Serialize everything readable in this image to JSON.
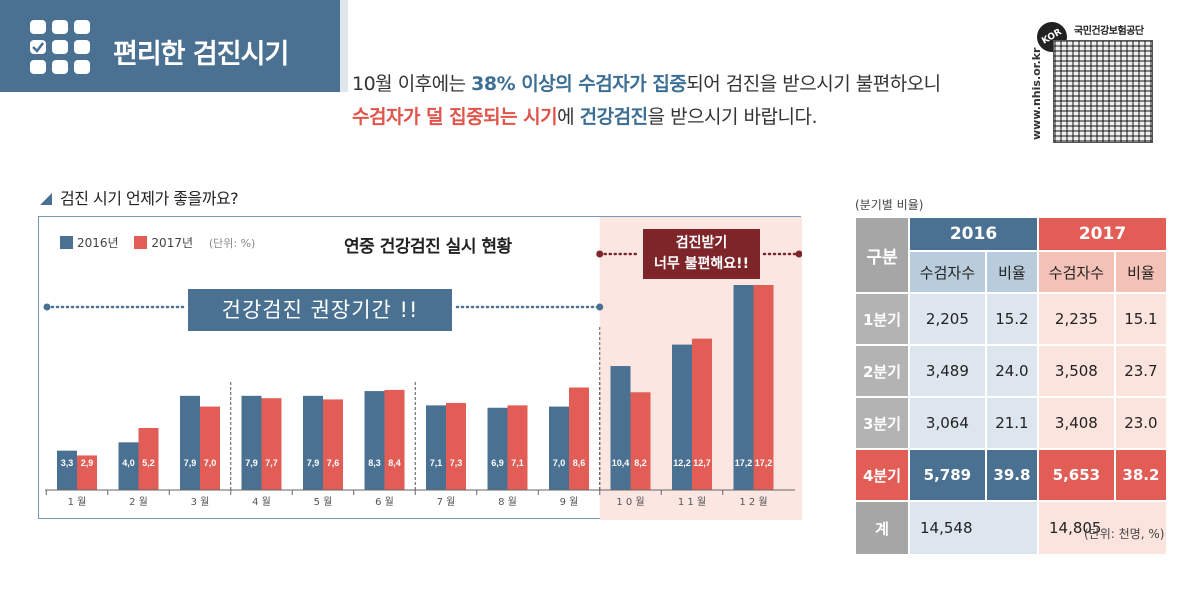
{
  "header": {
    "title": "편리한 검진시기",
    "intro": [
      {
        "text": "10월 이후에는 ",
        "style": "plain"
      },
      {
        "text": "38% 이상의 수검자가 집중",
        "style": "blue"
      },
      {
        "text": "되어 검진을 받으시기 불편하오니",
        "style": "plain"
      },
      {
        "text": "수검자가 덜 집중되는 시기",
        "style": "red"
      },
      {
        "text": "에 ",
        "style": "plain"
      },
      {
        "text": "건강검진",
        "style": "blue"
      },
      {
        "text": "을 받으시기 바랍니다.",
        "style": "plain"
      }
    ]
  },
  "logo": {
    "name": "국민건강보험공단",
    "url": "www.nhis.or.kr",
    "badge": "KOR"
  },
  "section": {
    "title": "검진 시기 언제가 좋을까요?"
  },
  "chart_data": {
    "type": "bar",
    "title": "연중 건강검진 실시 현황",
    "unit_label": "(단위: %)",
    "categories": [
      "1 월",
      "2 월",
      "3 월",
      "4 월",
      "5 월",
      "6 월",
      "7 월",
      "8 월",
      "9 월",
      "1 0 월",
      "1 1 월",
      "1 2 월"
    ],
    "series": [
      {
        "name": "2016년",
        "color": "#4a7192",
        "values": [
          3.3,
          4.0,
          7.9,
          7.9,
          7.9,
          8.3,
          7.1,
          6.9,
          7.0,
          10.4,
          12.2,
          17.2
        ],
        "labels": [
          "3,3",
          "4,0",
          "7,9",
          "7,9",
          "7,9",
          "8,3",
          "7,1",
          "6,9",
          "7,0",
          "10,4",
          "12,2",
          "17,2"
        ]
      },
      {
        "name": "2017년",
        "color": "#e15d56",
        "values": [
          2.9,
          5.2,
          7.0,
          7.7,
          7.6,
          8.4,
          7.3,
          7.1,
          8.6,
          8.2,
          12.7,
          17.2
        ],
        "labels": [
          "2,9",
          "5,2",
          "7,0",
          "7,7",
          "7,6",
          "8,4",
          "7,3",
          "7,1",
          "8,6",
          "8,2",
          "12,7",
          "17,2"
        ]
      }
    ],
    "ylim": [
      0,
      17.2
    ],
    "quarter_dividers": true,
    "highlight": "Q4 months shaded",
    "annotations": {
      "recommended_period": "건강검진  권장기간 !!",
      "warning": [
        "검진받기",
        "너무 불편해요!!"
      ]
    }
  },
  "table": {
    "caption": "(분기별 비율)",
    "unit": "(단위: 천명, %)",
    "header_label": "구분",
    "years": [
      "2016",
      "2017"
    ],
    "subheaders": [
      "수검자수",
      "비율",
      "수검자수",
      "비율"
    ],
    "rows": [
      {
        "label": "1분기",
        "values": [
          "2,205",
          "15.2",
          "2,235",
          "15.1"
        ]
      },
      {
        "label": "2분기",
        "values": [
          "3,489",
          "24.0",
          "3,508",
          "23.7"
        ]
      },
      {
        "label": "3분기",
        "values": [
          "3,064",
          "21.1",
          "3,408",
          "23.0"
        ]
      },
      {
        "label": "4분기",
        "values": [
          "5,789",
          "39.8",
          "5,653",
          "38.2"
        ]
      },
      {
        "label": "계",
        "values": [
          "14,548",
          "",
          "14,805",
          ""
        ]
      }
    ]
  }
}
